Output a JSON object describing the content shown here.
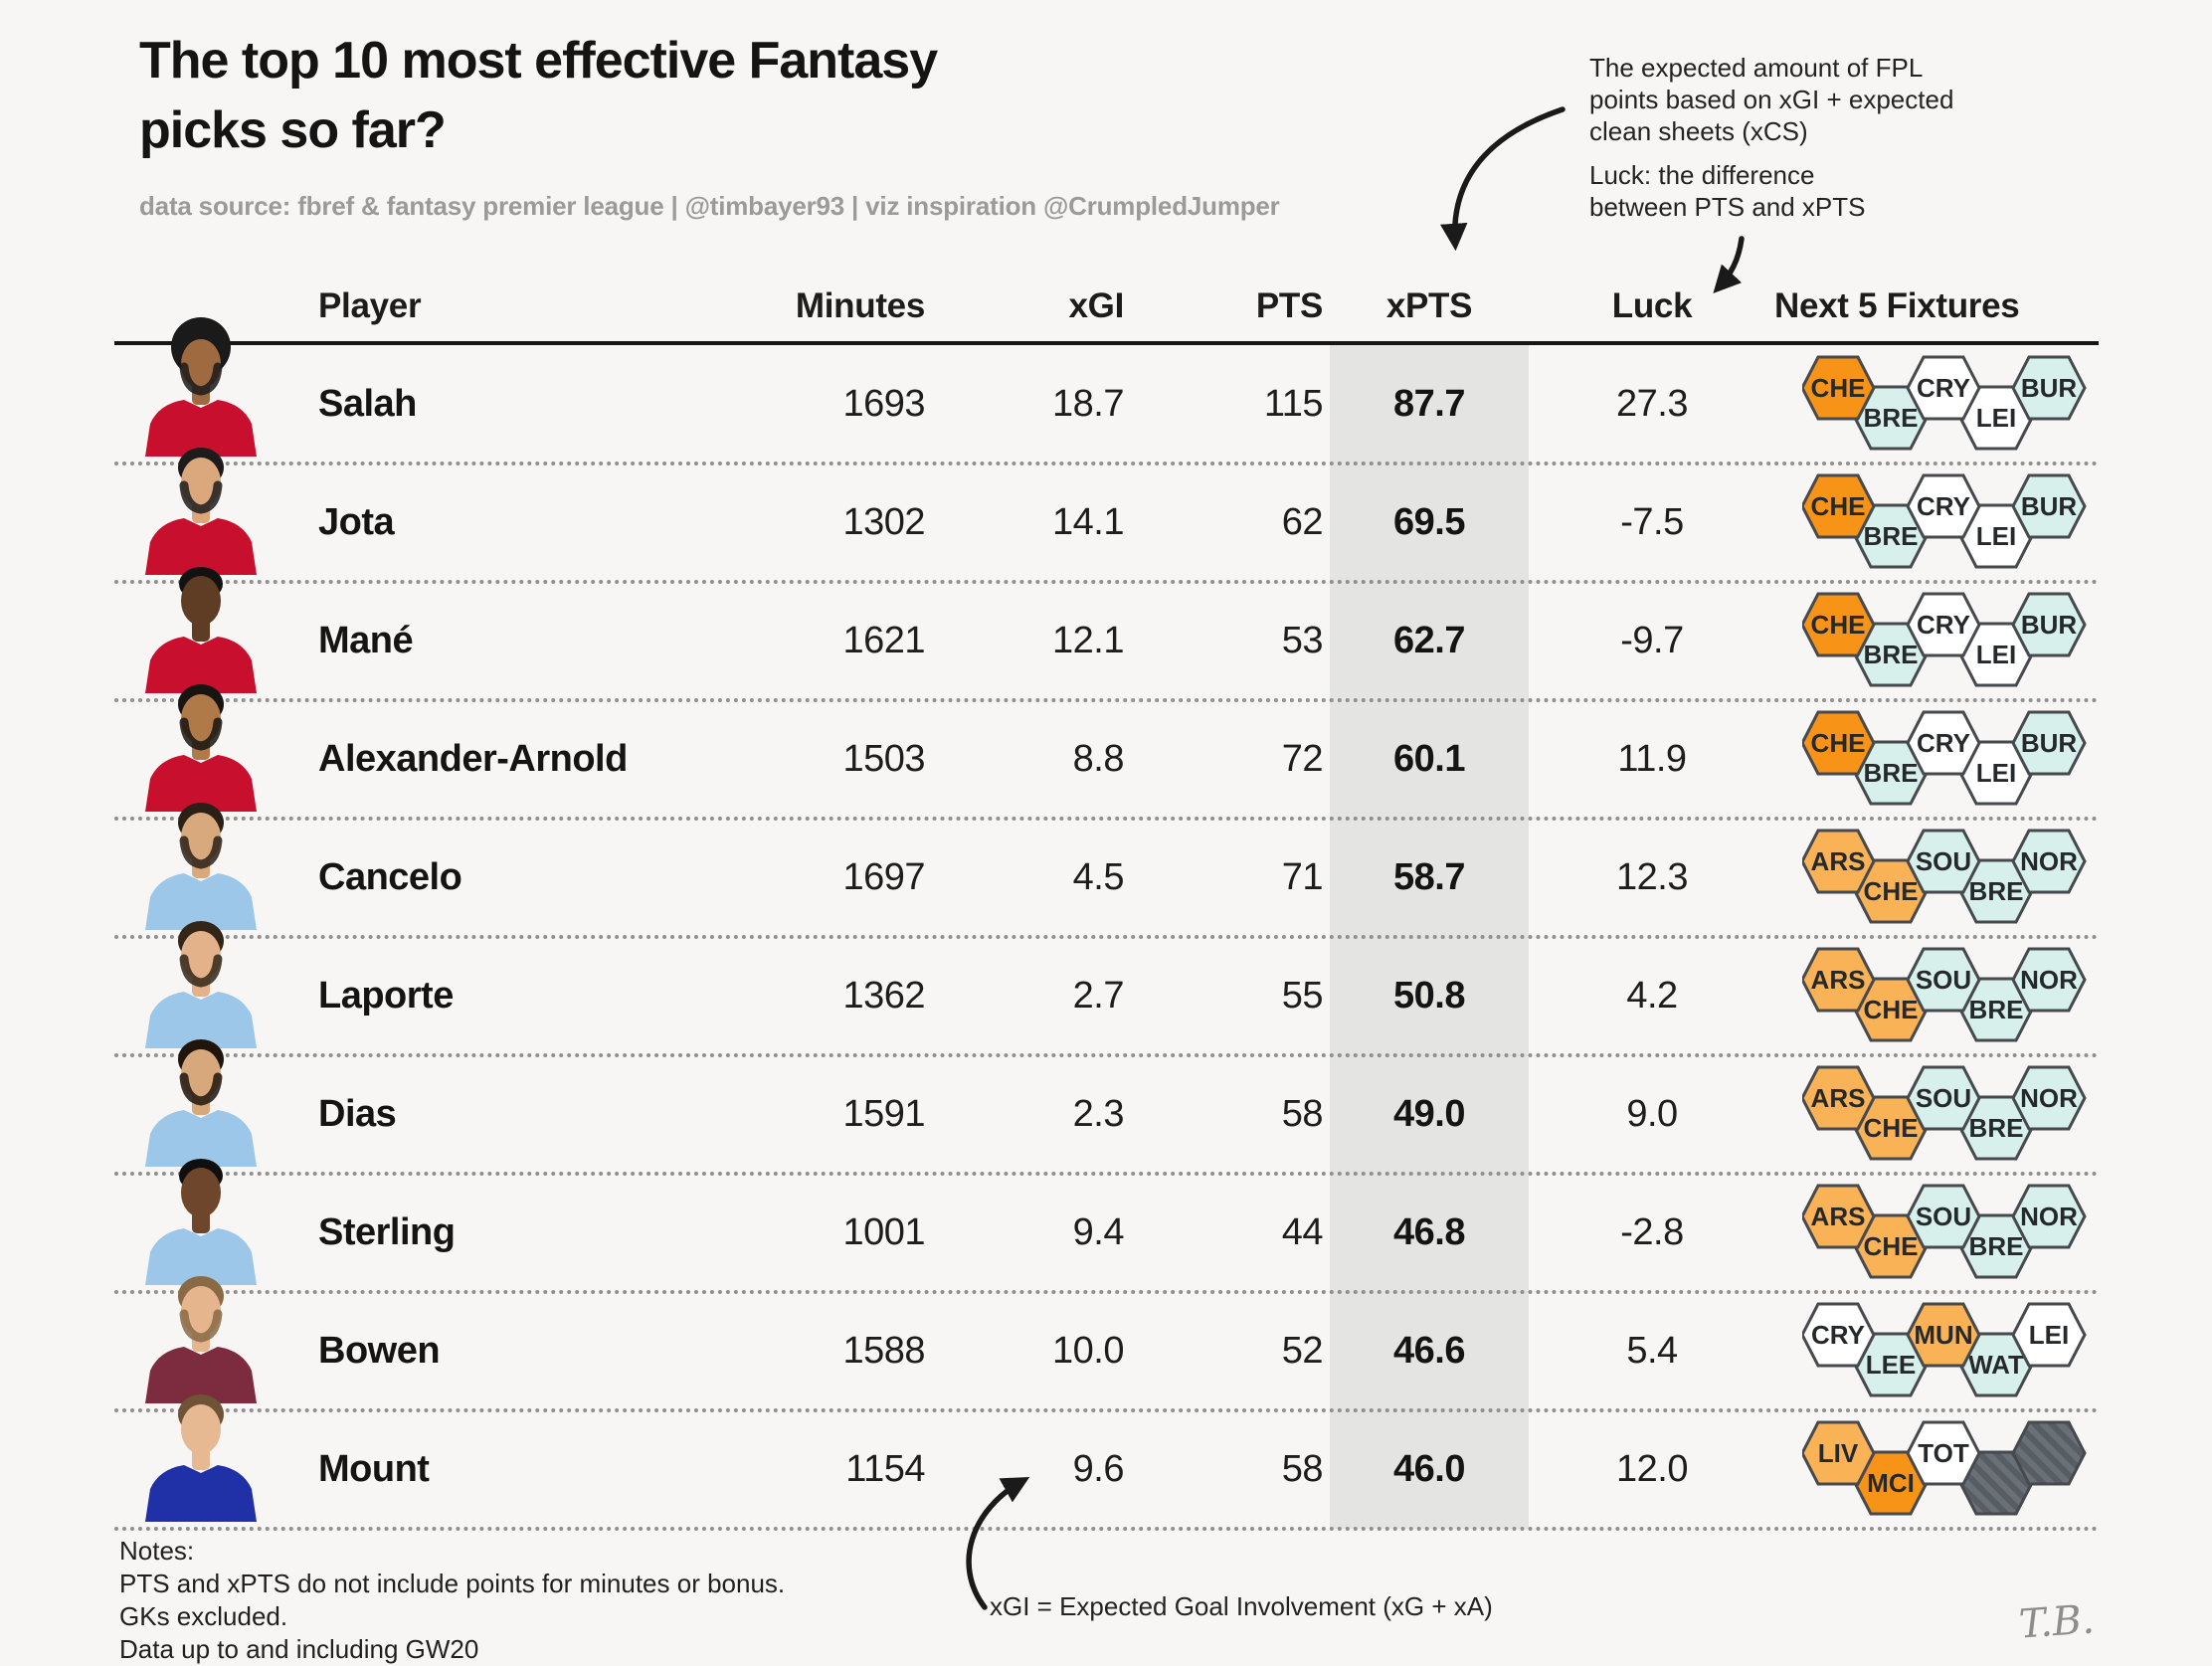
{
  "page": {
    "bg": "#f7f6f4",
    "signature": "T.B."
  },
  "header": {
    "title_line1": "The top 10 most effective Fantasy",
    "title_line2": "picks so far?",
    "subtitle": "data source: fbref & fantasy premier league | @timbayer93 | viz inspiration @CrumpledJumper"
  },
  "annotations": {
    "xpts_line1": "The expected amount of FPL",
    "xpts_line2": "points based on xGI + expected",
    "xpts_line3": "clean sheets (xCS)",
    "luck_line1": "Luck: the difference",
    "luck_line2": "between PTS and xPTS",
    "xgi_note": "xGI = Expected Goal Involvement (xG + xA)"
  },
  "notes": {
    "heading": "Notes:",
    "line1": "PTS and xPTS do not include points for minutes or bonus.",
    "line2": "GKs excluded.",
    "line3": "Data up to and including GW20"
  },
  "table": {
    "headers": {
      "player": "Player",
      "minutes": "Minutes",
      "xgi": "xGI",
      "pts": "PTS",
      "xpts": "xPTS",
      "luck": "Luck",
      "fixtures": "Next 5 Fixtures"
    },
    "highlight": {
      "column": "xPTS",
      "color": "#e4e4e2"
    }
  },
  "fixture_palette": {
    "hard": "#f79417",
    "medhard": "#f9b256",
    "easy": "#d7f0eb",
    "medium": "#ffffff",
    "blank_dark": "#585d63",
    "blank_light": "#6a7077",
    "border": "#46494d"
  },
  "chart_data": {
    "type": "table",
    "title": "The top 10 most effective Fantasy picks so far?",
    "columns": [
      "Player",
      "Minutes",
      "xGI",
      "PTS",
      "xPTS",
      "Luck",
      "Next 5 Fixtures"
    ],
    "rows": [
      {
        "player": "Salah",
        "minutes": "1693",
        "xgi": "18.7",
        "pts": "115",
        "xpts": "87.7",
        "luck": "27.3",
        "avatar": {
          "shirt": "#c8102e",
          "skin": "#a06a41",
          "hair": "#1a1a1a",
          "style": "afro",
          "beard": true
        },
        "fixtures": [
          {
            "opp": "CHE",
            "fdr": "hard"
          },
          {
            "opp": "BRE",
            "fdr": "easy"
          },
          {
            "opp": "CRY",
            "fdr": "medium"
          },
          {
            "opp": "LEI",
            "fdr": "medium"
          },
          {
            "opp": "BUR",
            "fdr": "easy"
          }
        ]
      },
      {
        "player": "Jota",
        "minutes": "1302",
        "xgi": "14.1",
        "pts": "62",
        "xpts": "69.5",
        "luck": "-7.5",
        "avatar": {
          "shirt": "#c8102e",
          "skin": "#dba77c",
          "hair": "#1c1c1c",
          "style": "short",
          "beard": true
        },
        "fixtures": [
          {
            "opp": "CHE",
            "fdr": "hard"
          },
          {
            "opp": "BRE",
            "fdr": "easy"
          },
          {
            "opp": "CRY",
            "fdr": "medium"
          },
          {
            "opp": "LEI",
            "fdr": "medium"
          },
          {
            "opp": "BUR",
            "fdr": "easy"
          }
        ]
      },
      {
        "player": "Mané",
        "minutes": "1621",
        "xgi": "12.1",
        "pts": "53",
        "xpts": "62.7",
        "luck": "-9.7",
        "avatar": {
          "shirt": "#c8102e",
          "skin": "#5f3c24",
          "hair": "#121212",
          "style": "crop",
          "beard": false
        },
        "fixtures": [
          {
            "opp": "CHE",
            "fdr": "hard"
          },
          {
            "opp": "BRE",
            "fdr": "easy"
          },
          {
            "opp": "CRY",
            "fdr": "medium"
          },
          {
            "opp": "LEI",
            "fdr": "medium"
          },
          {
            "opp": "BUR",
            "fdr": "easy"
          }
        ]
      },
      {
        "player": "Alexander-Arnold",
        "minutes": "1503",
        "xgi": "8.8",
        "pts": "72",
        "xpts": "60.1",
        "luck": "11.9",
        "avatar": {
          "shirt": "#c8102e",
          "skin": "#b07948",
          "hair": "#171412",
          "style": "short",
          "beard": true
        },
        "fixtures": [
          {
            "opp": "CHE",
            "fdr": "hard"
          },
          {
            "opp": "BRE",
            "fdr": "easy"
          },
          {
            "opp": "CRY",
            "fdr": "medium"
          },
          {
            "opp": "LEI",
            "fdr": "medium"
          },
          {
            "opp": "BUR",
            "fdr": "easy"
          }
        ]
      },
      {
        "player": "Cancelo",
        "minutes": "1697",
        "xgi": "4.5",
        "pts": "71",
        "xpts": "58.7",
        "luck": "12.3",
        "avatar": {
          "shirt": "#9cc7e8",
          "skin": "#d9a97e",
          "hair": "#2b2016",
          "style": "short",
          "beard": true
        },
        "fixtures": [
          {
            "opp": "ARS",
            "fdr": "medhard"
          },
          {
            "opp": "CHE",
            "fdr": "medhard"
          },
          {
            "opp": "SOU",
            "fdr": "easy"
          },
          {
            "opp": "BRE",
            "fdr": "easy"
          },
          {
            "opp": "NOR",
            "fdr": "easy"
          }
        ]
      },
      {
        "player": "Laporte",
        "minutes": "1362",
        "xgi": "2.7",
        "pts": "55",
        "xpts": "50.8",
        "luck": "4.2",
        "avatar": {
          "shirt": "#9cc7e8",
          "skin": "#e3b28b",
          "hair": "#332619",
          "style": "short",
          "beard": true
        },
        "fixtures": [
          {
            "opp": "ARS",
            "fdr": "medhard"
          },
          {
            "opp": "CHE",
            "fdr": "medhard"
          },
          {
            "opp": "SOU",
            "fdr": "easy"
          },
          {
            "opp": "BRE",
            "fdr": "easy"
          },
          {
            "opp": "NOR",
            "fdr": "easy"
          }
        ]
      },
      {
        "player": "Dias",
        "minutes": "1591",
        "xgi": "2.3",
        "pts": "58",
        "xpts": "49.0",
        "luck": "9.0",
        "avatar": {
          "shirt": "#9cc7e8",
          "skin": "#d8a87d",
          "hair": "#1f150c",
          "style": "short",
          "beard": true
        },
        "fixtures": [
          {
            "opp": "ARS",
            "fdr": "medhard"
          },
          {
            "opp": "CHE",
            "fdr": "medhard"
          },
          {
            "opp": "SOU",
            "fdr": "easy"
          },
          {
            "opp": "BRE",
            "fdr": "easy"
          },
          {
            "opp": "NOR",
            "fdr": "easy"
          }
        ]
      },
      {
        "player": "Sterling",
        "minutes": "1001",
        "xgi": "9.4",
        "pts": "44",
        "xpts": "46.8",
        "luck": "-2.8",
        "avatar": {
          "shirt": "#9cc7e8",
          "skin": "#6e462b",
          "hair": "#0f0f0f",
          "style": "crop",
          "beard": false
        },
        "fixtures": [
          {
            "opp": "ARS",
            "fdr": "medhard"
          },
          {
            "opp": "CHE",
            "fdr": "medhard"
          },
          {
            "opp": "SOU",
            "fdr": "easy"
          },
          {
            "opp": "BRE",
            "fdr": "easy"
          },
          {
            "opp": "NOR",
            "fdr": "easy"
          }
        ]
      },
      {
        "player": "Bowen",
        "minutes": "1588",
        "xgi": "10.0",
        "pts": "52",
        "xpts": "46.6",
        "luck": "5.4",
        "avatar": {
          "shirt": "#7d2c3f",
          "skin": "#e5b58e",
          "hair": "#8a6a45",
          "style": "short",
          "beard": true
        },
        "fixtures": [
          {
            "opp": "CRY",
            "fdr": "medium"
          },
          {
            "opp": "LEE",
            "fdr": "easy"
          },
          {
            "opp": "MUN",
            "fdr": "medhard"
          },
          {
            "opp": "WAT",
            "fdr": "easy"
          },
          {
            "opp": "LEI",
            "fdr": "medium"
          }
        ]
      },
      {
        "player": "Mount",
        "minutes": "1154",
        "xgi": "9.6",
        "pts": "58",
        "xpts": "46.0",
        "luck": "12.0",
        "avatar": {
          "shirt": "#2030a6",
          "skin": "#e6b992",
          "hair": "#6f5336",
          "style": "short",
          "beard": false
        },
        "fixtures": [
          {
            "opp": "LIV",
            "fdr": "medhard"
          },
          {
            "opp": "MCI",
            "fdr": "hard"
          },
          {
            "opp": "TOT",
            "fdr": "medium"
          },
          {
            "opp": "",
            "fdr": "blank"
          },
          {
            "opp": "",
            "fdr": "blank"
          }
        ]
      }
    ]
  }
}
